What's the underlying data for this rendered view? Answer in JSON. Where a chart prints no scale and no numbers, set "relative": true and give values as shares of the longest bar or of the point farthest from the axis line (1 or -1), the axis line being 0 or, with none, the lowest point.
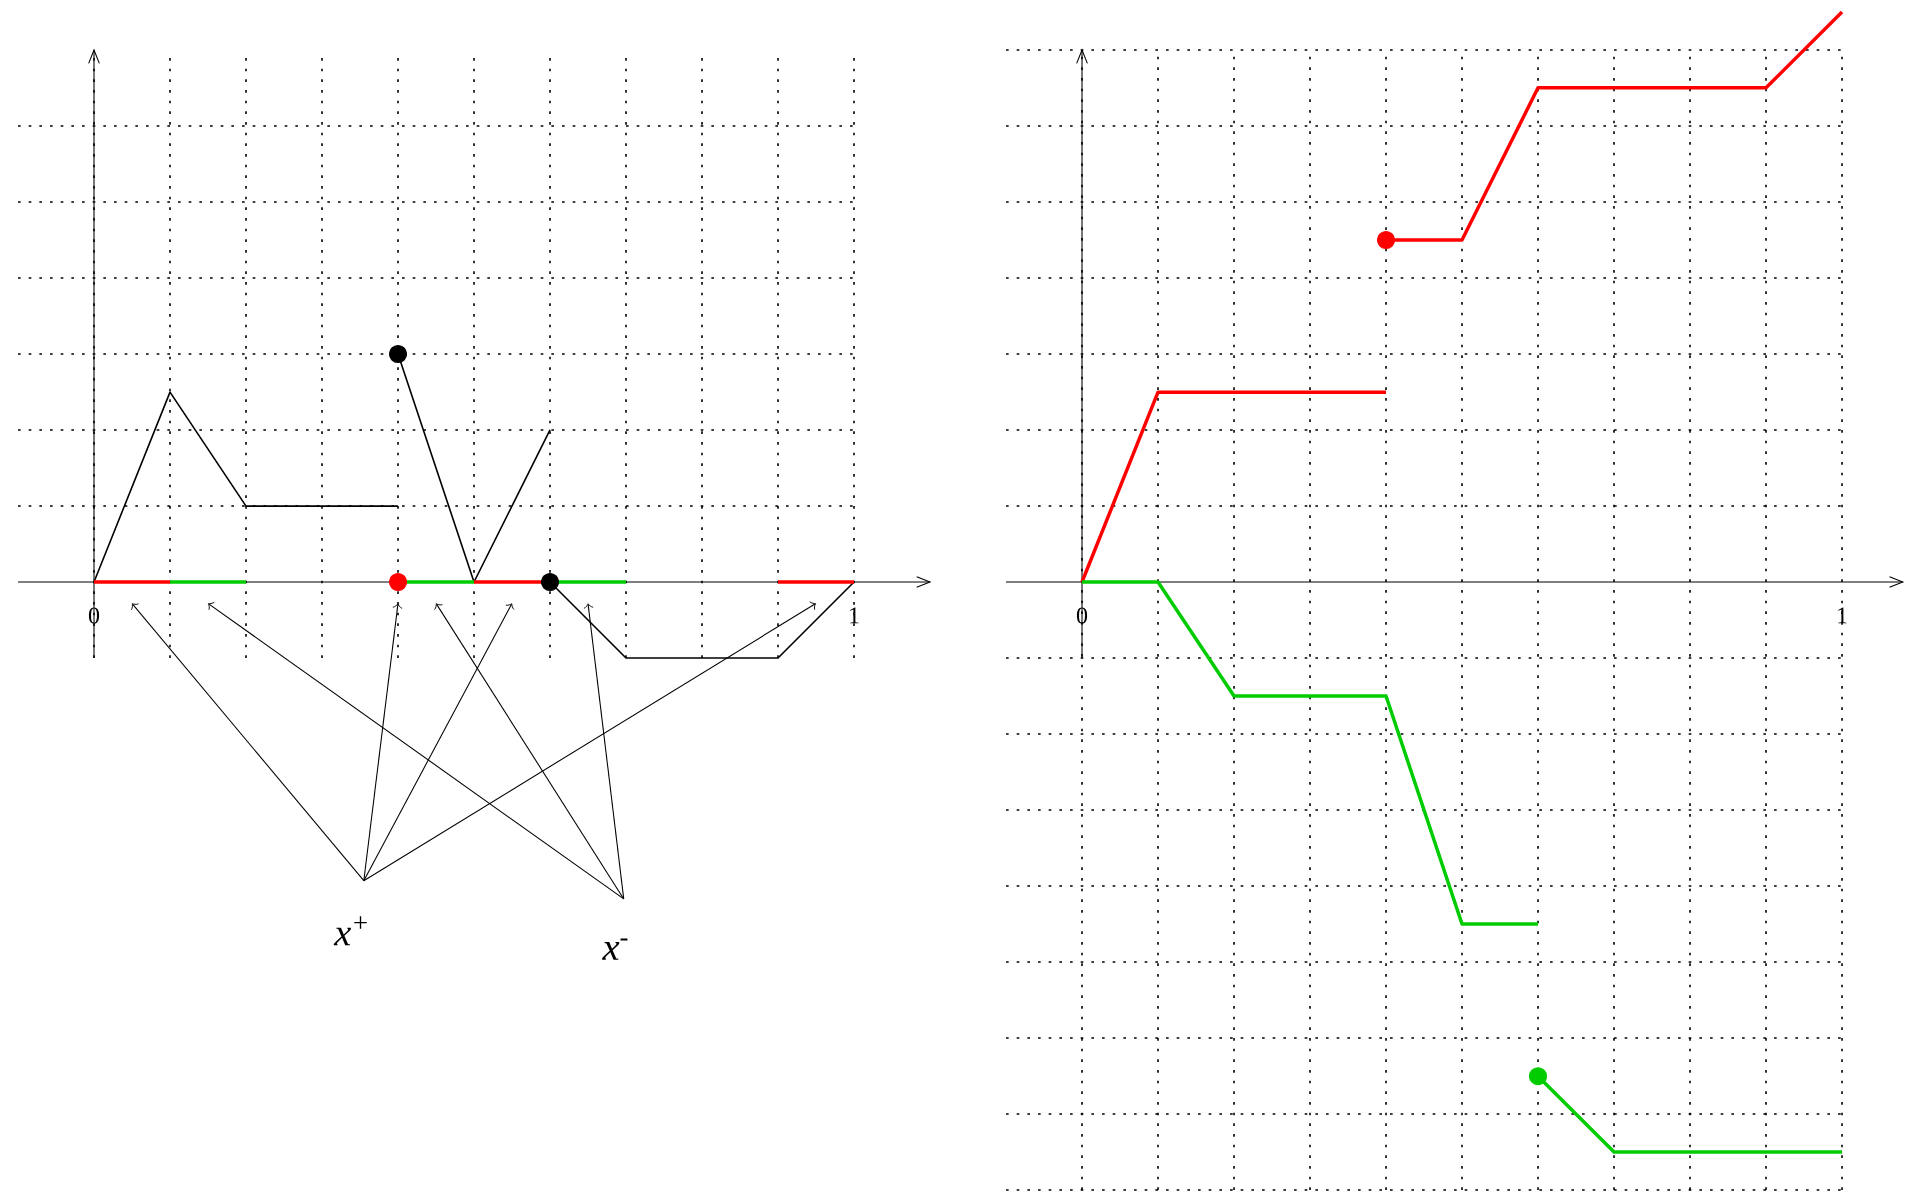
{
  "chart_data": [
    {
      "type": "line",
      "relative": true,
      "grid": true,
      "xlim": [
        -0.1,
        1.1
      ],
      "xticks": [
        0,
        {
          "value": 0.1,
          "label": null
        },
        {
          "value": 0.2,
          "label": null
        },
        {
          "value": 0.3,
          "label": null
        },
        {
          "value": 0.4,
          "label": null
        },
        {
          "value": 0.5,
          "label": null
        },
        {
          "value": 0.6,
          "label": null
        },
        {
          "value": 0.7,
          "label": null
        },
        {
          "value": 0.8,
          "label": null
        },
        {
          "value": 0.9,
          "label": null
        },
        1
      ],
      "series": [
        {
          "color": "#000000",
          "x": [
            0,
            0.1,
            0.2,
            0.4
          ],
          "values": [
            0,
            0.833,
            0.333,
            0.333
          ]
        },
        {
          "color": "#000000",
          "x": [
            0.4,
            0.5,
            0.6
          ],
          "values": [
            1,
            0,
            0.667
          ]
        },
        {
          "color": "#000000",
          "x": [
            0.6,
            0.7,
            0.9,
            1.0
          ],
          "values": [
            0,
            -0.333,
            -0.333,
            0
          ]
        },
        {
          "color": "#ff0000",
          "x": [
            0,
            0.1
          ],
          "values": [
            0,
            0
          ]
        },
        {
          "color": "#ff0000",
          "x": [
            0.5,
            0.6
          ],
          "values": [
            0,
            0
          ]
        },
        {
          "color": "#ff0000",
          "x": [
            0.9,
            1.0
          ],
          "values": [
            0,
            0
          ]
        },
        {
          "color": "#00cc00",
          "x": [
            0.1,
            0.2
          ],
          "values": [
            0,
            0
          ]
        },
        {
          "color": "#00cc00",
          "x": [
            0.4,
            0.5
          ],
          "values": [
            0,
            0
          ]
        },
        {
          "color": "#00cc00",
          "x": [
            0.6,
            0.7
          ],
          "values": [
            0,
            0
          ]
        },
        {
          "type": "scatter",
          "color": "#000000",
          "x": [
            0.4,
            0.6
          ],
          "values": [
            1,
            0
          ]
        },
        {
          "type": "scatter",
          "color": "#ff0000",
          "x": [
            0.4
          ],
          "values": [
            0
          ]
        }
      ],
      "ref_lines": [
        {
          "axis": "x",
          "value": 0,
          "color": "#000000"
        }
      ],
      "annotations": [
        "x$^{+}$",
        "x$^{-}$"
      ]
    },
    {
      "type": "line",
      "relative": true,
      "grid": true,
      "xlim": [
        -0.1,
        1.08
      ],
      "xticks": [
        0,
        {
          "value": 0.1,
          "label": null
        },
        {
          "value": 0.2,
          "label": null
        },
        {
          "value": 0.3,
          "label": null
        },
        {
          "value": 0.4,
          "label": null
        },
        {
          "value": 0.5,
          "label": null
        },
        {
          "value": 0.6,
          "label": null
        },
        {
          "value": 0.7,
          "label": null
        },
        {
          "value": 0.8,
          "label": null
        },
        {
          "value": 0.9,
          "label": null
        },
        1
      ],
      "series": [
        {
          "color": "#ff0000",
          "x": [
            0,
            0.1,
            0.4
          ],
          "values": [
            0,
            0.333,
            0.333
          ]
        },
        {
          "color": "#ff0000",
          "x": [
            0.4,
            0.5,
            0.6,
            0.9,
            1.0
          ],
          "values": [
            0.6,
            0.6,
            0.867,
            0.867,
            1.0
          ]
        },
        {
          "color": "#00cc00",
          "x": [
            0,
            0.1,
            0.2,
            0.4,
            0.5,
            0.6
          ],
          "values": [
            0,
            0,
            -0.2,
            -0.2,
            -0.6,
            -0.6
          ]
        },
        {
          "color": "#00cc00",
          "x": [
            0.6,
            0.7,
            1.0
          ],
          "values": [
            -0.867,
            -1,
            -1
          ]
        },
        {
          "type": "scatter",
          "color": "#ff0000",
          "x": [
            0.4
          ],
          "values": [
            0.6
          ]
        },
        {
          "type": "scatter",
          "color": "#00cc00",
          "x": [
            0.6
          ],
          "values": [
            -0.867
          ]
        }
      ],
      "ref_lines": [
        {
          "axis": "x",
          "value": 0,
          "color": "#000000"
        }
      ]
    }
  ]
}
